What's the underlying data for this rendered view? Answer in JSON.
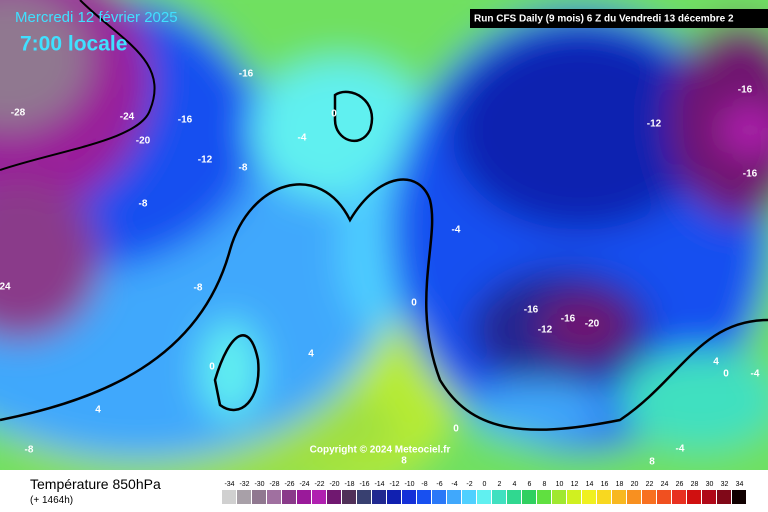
{
  "header": {
    "date": "Mercredi 12 février 2025",
    "time": "7:00 locale",
    "run": "Run CFS Daily (9 mois) 6 Z du Vendredi 13 décembre 2"
  },
  "map": {
    "copyright": "Copyright © 2024 Meteociel.fr",
    "contour_labels": [
      -28,
      -24,
      -20,
      -16,
      -16,
      -12,
      -8,
      -4,
      0,
      -8,
      -8,
      -4,
      0,
      4,
      0,
      4,
      -8,
      -16,
      -12,
      -16,
      -20,
      -12,
      -16,
      -16,
      4,
      0,
      -4,
      0,
      8,
      -4,
      8,
      24
    ]
  },
  "footer": {
    "title": "Température 850hPa",
    "lead": "(+ 1464h)"
  },
  "legend": {
    "values": [
      -34,
      -32,
      -30,
      -28,
      -26,
      -24,
      -22,
      -20,
      -18,
      -16,
      -14,
      -12,
      -10,
      -8,
      -6,
      -4,
      -2,
      0,
      2,
      4,
      6,
      8,
      10,
      12,
      14,
      16,
      18,
      20,
      22,
      24,
      26,
      28,
      30,
      32,
      34
    ],
    "colors": [
      "#d0d0d0",
      "#a8a0a8",
      "#907890",
      "#a070a0",
      "#8a3a8a",
      "#9a1a9a",
      "#b020b0",
      "#701870",
      "#503058",
      "#384070",
      "#202890",
      "#1020b0",
      "#1430d8",
      "#1850f0",
      "#2a78f8",
      "#40a8fc",
      "#50d0ff",
      "#60f0f0",
      "#40e0c0",
      "#30d890",
      "#30d060",
      "#60e040",
      "#a0e830",
      "#d0f020",
      "#f0f020",
      "#f8d820",
      "#f8b820",
      "#f89020",
      "#f87020",
      "#f05020",
      "#e83020",
      "#d01010",
      "#b00818",
      "#800818",
      "#100000"
    ]
  }
}
